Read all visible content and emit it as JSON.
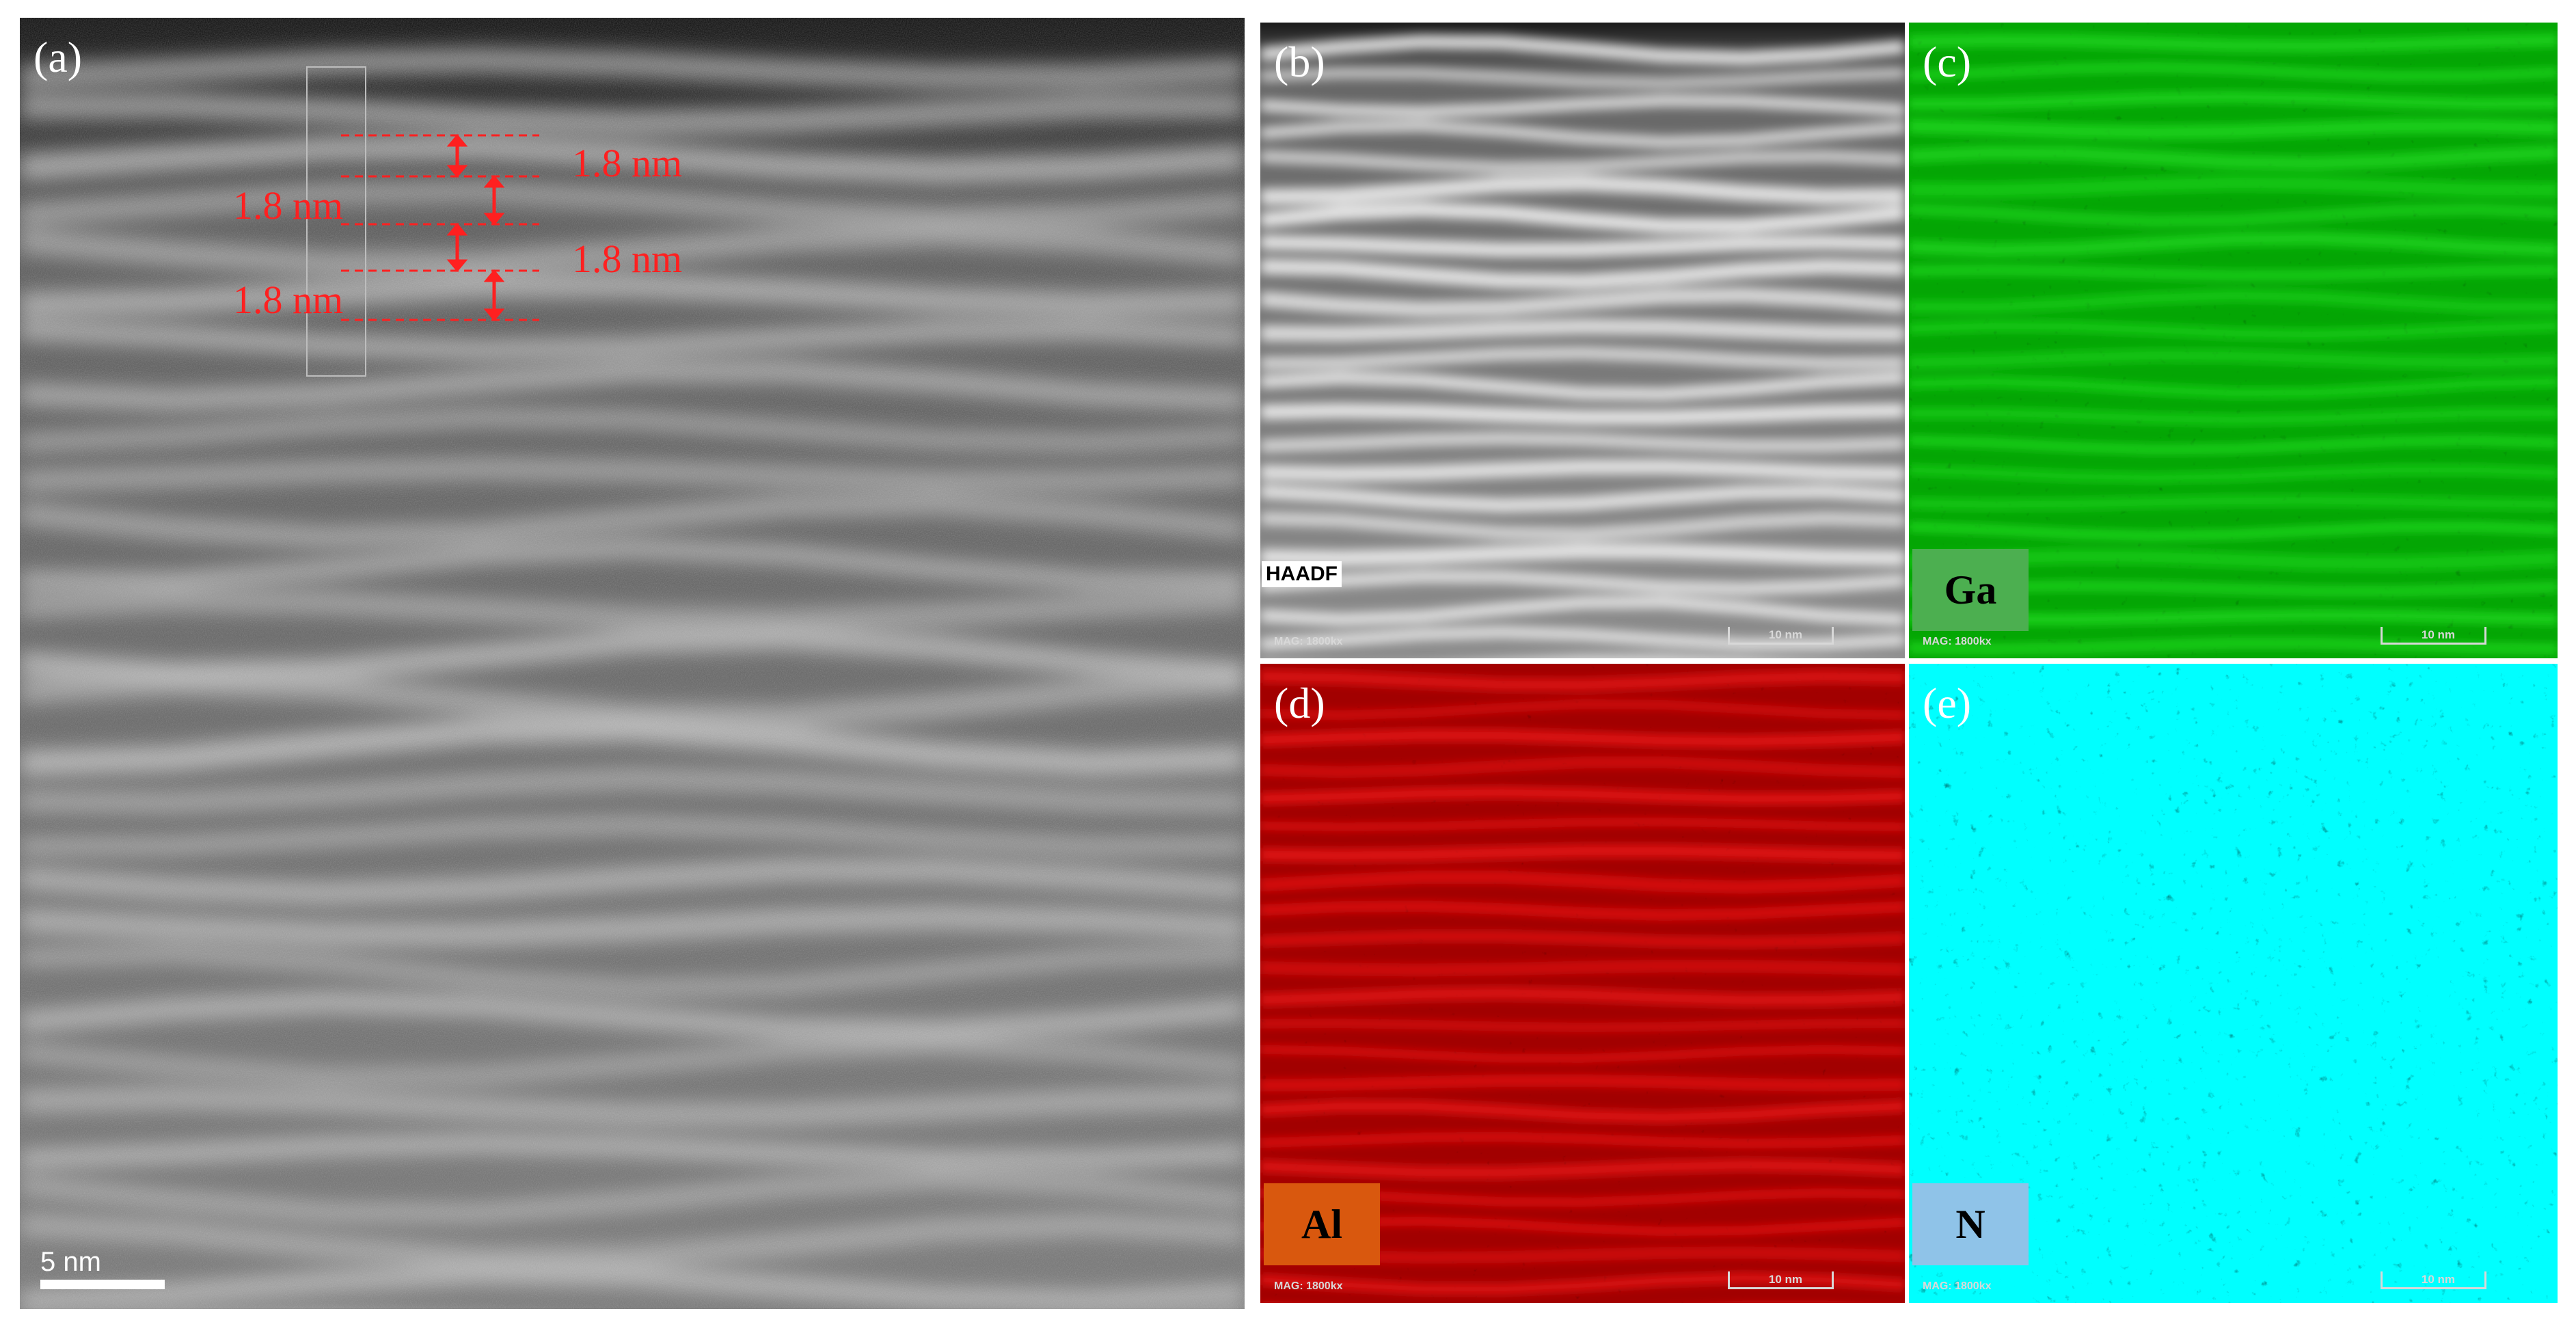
{
  "panels": {
    "a": {
      "label": "(a)",
      "measurements": [
        "1.8 nm",
        "1.8 nm",
        "1.8 nm",
        "1.8 nm"
      ],
      "scale_bar": "5 nm",
      "measure_color": "#ff2020"
    },
    "b": {
      "label": "(b)",
      "signal": "HAADF",
      "magnification": "MAG: 1800kx",
      "scale_bar": "10 nm"
    },
    "c": {
      "label": "(c)",
      "element": "Ga",
      "element_box_color": "#4caf50",
      "map_color": "#22dd22",
      "magnification": "MAG: 1800kx",
      "scale_bar": "10 nm"
    },
    "d": {
      "label": "(d)",
      "element": "Al",
      "element_box_color": "#d9580e",
      "map_color": "#ff1a1a",
      "magnification": "MAG: 1800kx",
      "scale_bar": "10 nm"
    },
    "e": {
      "label": "(e)",
      "element": "N",
      "element_box_color": "#8fc3e8",
      "map_color": "#2ed3d3",
      "magnification": "MAG: 1800kx",
      "scale_bar": "10 nm"
    }
  }
}
